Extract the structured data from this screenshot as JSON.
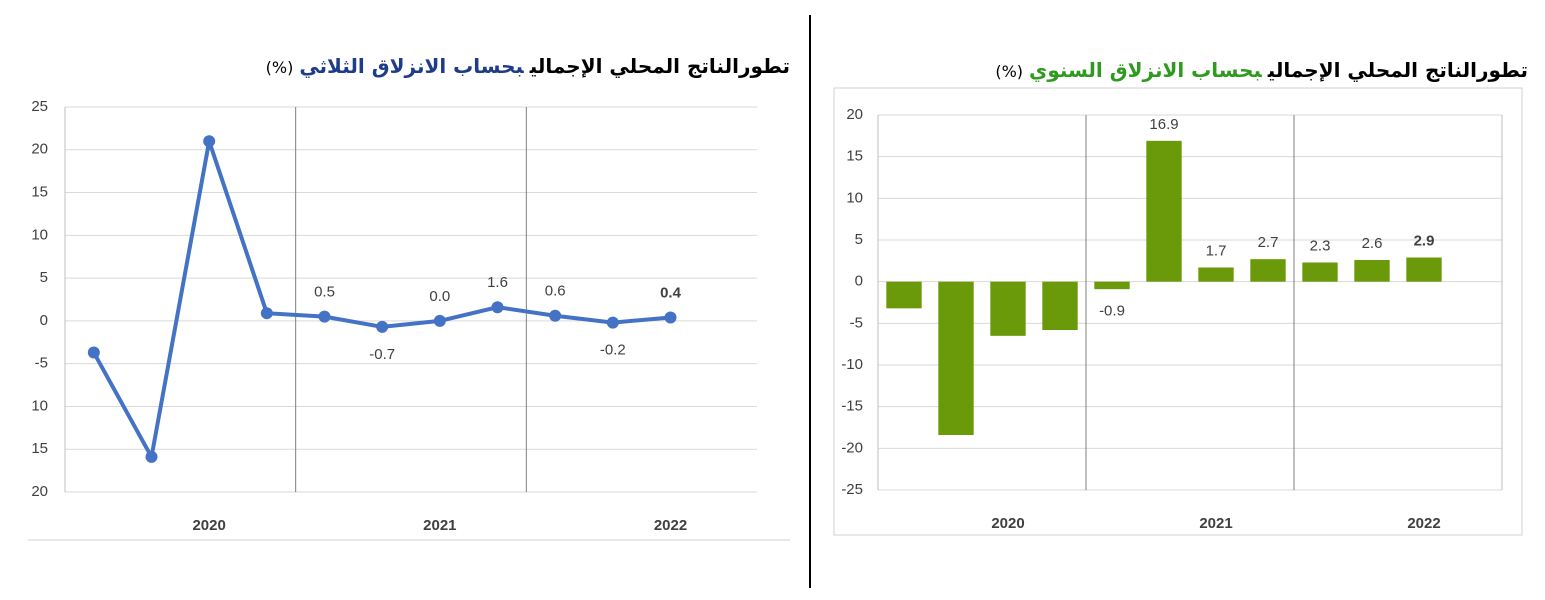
{
  "chart_data": [
    {
      "type": "line",
      "title_parts": [
        {
          "text": "تطورالناتج المحلي الإجمالي",
          "color": "#000000"
        },
        {
          "text": "بحساب الانزلاق الثلاثي",
          "color": "#1f3c88"
        },
        {
          "text": "(%)",
          "color": "#000000"
        }
      ],
      "categories": [
        null,
        null,
        null,
        null,
        null,
        null,
        null,
        null,
        null,
        null,
        null
      ],
      "x_groups": [
        {
          "label": "2020",
          "count": 4
        },
        {
          "label": "2021",
          "count": 4
        },
        {
          "label": "2022",
          "count": 3
        }
      ],
      "values": [
        -3.7,
        -15.9,
        21.0,
        0.9,
        0.5,
        -0.7,
        0.0,
        1.6,
        0.6,
        -0.2,
        0.4
      ],
      "value_labels": [
        null,
        null,
        null,
        null,
        "0.5",
        "-0.7",
        "0.0",
        "1.6",
        "0.6",
        "-0.2",
        "0.4"
      ],
      "value_label_colors": [
        null,
        null,
        null,
        null,
        "#000000",
        "#000000",
        "#000000",
        "#000000",
        "#000000",
        "#1f3c88",
        "#7030a0"
      ],
      "color": "#4472c4",
      "ylim": [
        -20,
        25
      ],
      "yticks": [
        25,
        20,
        15,
        10,
        5,
        0,
        -5,
        {
          "value": -10,
          "label": "10"
        },
        {
          "value": -15,
          "label": "15"
        },
        {
          "value": -20,
          "label": "20"
        }
      ],
      "grid": true
    },
    {
      "type": "bar",
      "title_parts": [
        {
          "text": "تطورالناتج المحلي الإجمالي",
          "color": "#000000"
        },
        {
          "text": "بحساب الانزلاق السنوي",
          "color": "#2e9a1e"
        },
        {
          "text": "(%)",
          "color": "#000000"
        }
      ],
      "categories": [
        null,
        null,
        null,
        null,
        null,
        null,
        null,
        null,
        null,
        null,
        null
      ],
      "x_groups": [
        {
          "label": "2020",
          "count": 4
        },
        {
          "label": "2021",
          "count": 4
        },
        {
          "label": "2022",
          "count": 3
        }
      ],
      "values": [
        -3.2,
        -18.4,
        -6.5,
        -5.8,
        -0.9,
        16.9,
        1.7,
        2.7,
        2.3,
        2.6,
        2.9
      ],
      "value_labels": [
        null,
        null,
        null,
        null,
        "-0.9",
        "16.9",
        "1.7",
        "2.7",
        "2.3",
        "2.6",
        "2.9"
      ],
      "value_label_colors": [
        null,
        null,
        null,
        null,
        "#000000",
        "#000000",
        "#000000",
        "#000000",
        "#000000",
        "#1f3c88",
        "#1e6b1e"
      ],
      "color": "#6a9a0a",
      "ylim": [
        -25,
        20
      ],
      "yticks": [
        20,
        15,
        10,
        5,
        0,
        -5,
        -10,
        -15,
        -20,
        -25
      ],
      "grid": true
    }
  ]
}
